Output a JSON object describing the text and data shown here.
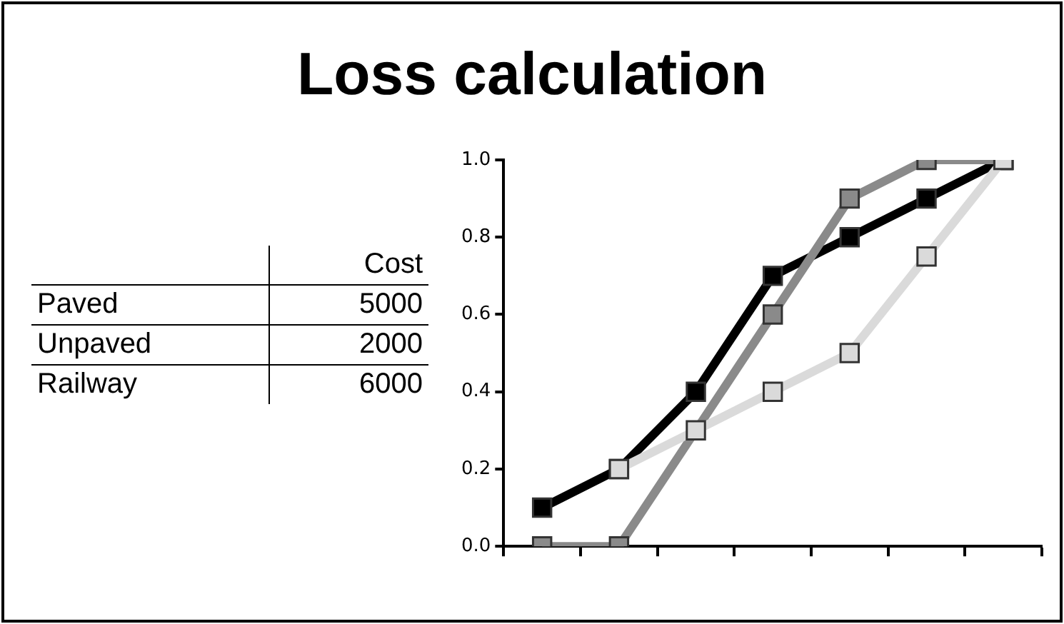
{
  "chart_data": [
    {
      "type": "other",
      "categories": [
        "Paved",
        "Unpaved",
        "Railway"
      ],
      "series": [
        {
          "name": "Cost",
          "values": [
            5000,
            2000,
            6000
          ]
        }
      ],
      "data_labels": true
    },
    {
      "type": "line",
      "title": "Loss calculation",
      "categories": [
        null,
        null,
        null,
        null,
        null,
        null,
        null
      ],
      "series": [
        {
          "color": "#dadada",
          "values": [
            null,
            0.2,
            0.3,
            0.4,
            0.5,
            0.75,
            1.0
          ]
        },
        {
          "color": "#8a8a8a",
          "values": [
            0,
            0,
            null,
            0.6,
            0.9,
            1.0,
            1.0
          ]
        },
        {
          "color": "#000000",
          "values": [
            0.1,
            0.2,
            0.4,
            0.7,
            0.8,
            0.9,
            1.0
          ]
        }
      ],
      "ylim": [
        0,
        1.0
      ],
      "yticks": [
        {
          "value": 0,
          "label": "0.0"
        },
        {
          "value": 0.2,
          "label": "0.2"
        },
        {
          "value": 0.4,
          "label": "0.4"
        },
        {
          "value": 0.6,
          "label": "0.6"
        },
        {
          "value": 0.8,
          "label": "0.8"
        },
        {
          "value": 1.0,
          "label": "1.0"
        }
      ],
      "grid": false,
      "legend": false,
      "marker": "square",
      "line_style": "solid"
    }
  ]
}
